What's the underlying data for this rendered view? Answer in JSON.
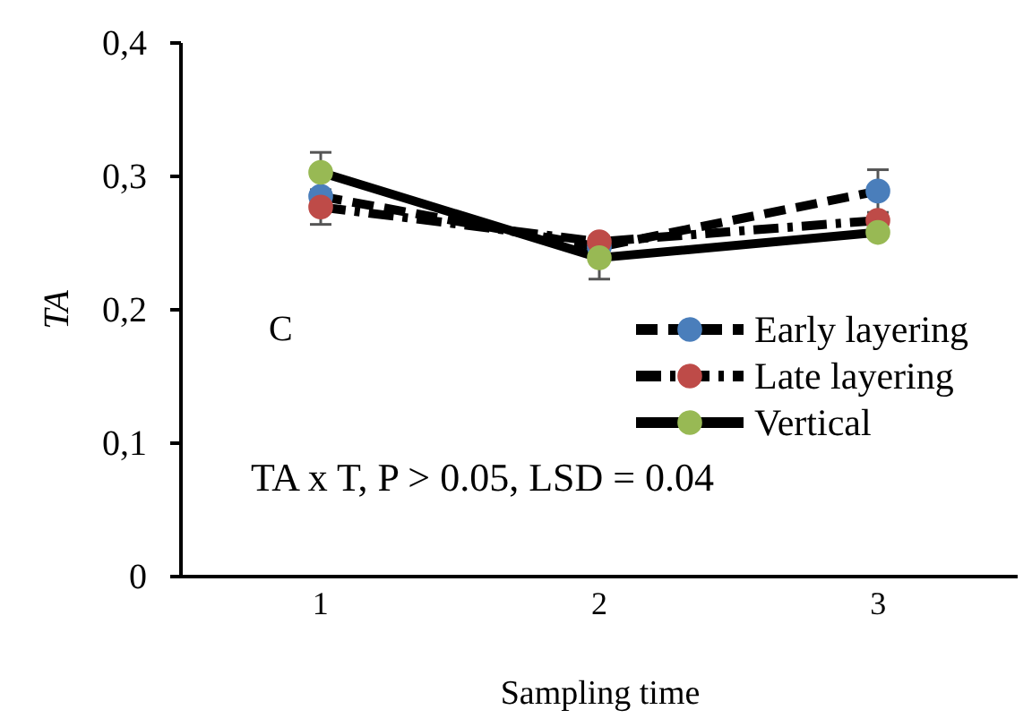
{
  "chart_data": {
    "type": "line",
    "xlabel": "Sampling time",
    "ylabel": "TA",
    "categories": [
      "1",
      "2",
      "3"
    ],
    "ylim": [
      0,
      0.4
    ],
    "yticks": [
      0,
      {
        "value": 0.1,
        "label": "0,1"
      },
      {
        "value": 0.2,
        "label": "0,2"
      },
      {
        "value": 0.3,
        "label": "0,3"
      },
      {
        "value": 0.4,
        "label": "0,4"
      }
    ],
    "series": [
      {
        "name": "Early layering",
        "color": "#4a7ebb",
        "values": [
          0.285,
          0.247,
          0.289
        ],
        "errors": [
          null,
          null,
          0.016
        ],
        "line_style": "dashed"
      },
      {
        "name": "Late layering",
        "color": "#be4b48",
        "values": [
          0.277,
          0.251,
          0.267
        ],
        "errors": [
          0.013,
          null,
          null
        ],
        "line_style": "dotted"
      },
      {
        "name": "Vertical",
        "color": "#98b954",
        "values": [
          0.303,
          0.239,
          0.258
        ],
        "errors": [
          0.015,
          0.016,
          null
        ],
        "line_style": "solid"
      }
    ],
    "marker": "circle",
    "legend": "right",
    "grid": false,
    "annotations": [
      "C",
      "TA x T, P > 0.05, LSD = 0.04"
    ]
  }
}
